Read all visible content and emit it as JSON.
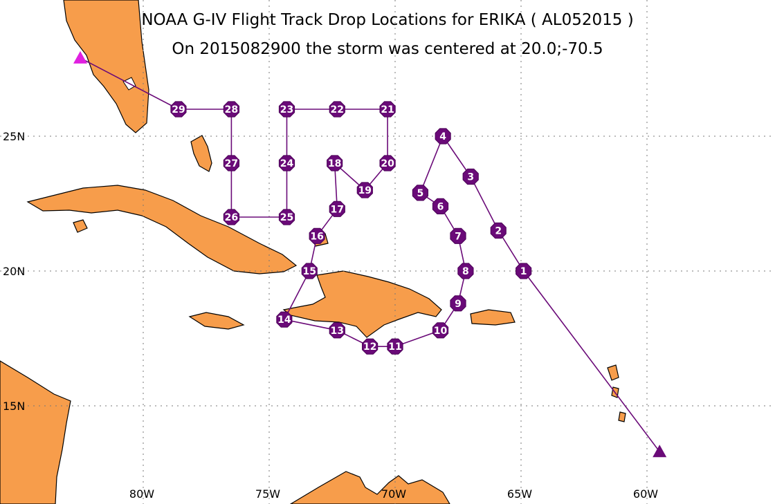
{
  "title": "NOAA G-IV Flight Track Drop Locations for ERIKA ( AL052015 )",
  "subtitle": "On 2015082900 the storm was centered at 20.0;-70.5",
  "colors": {
    "land": "#f79d4b",
    "track": "#6a0a78",
    "start_marker": "#e020e0",
    "end_marker": "#6a0a78"
  },
  "axes": {
    "lat_labels": [
      "25N",
      "20N",
      "15N"
    ],
    "lon_labels": [
      "80W",
      "75W",
      "70W",
      "65W",
      "60W"
    ]
  },
  "grid": true,
  "markers": {
    "start": {
      "shape": "triangle",
      "lat": 27.9,
      "lon": -82.5
    },
    "end": {
      "shape": "triangle",
      "lat": 13.3,
      "lon": -59.5
    }
  },
  "drops": [
    {
      "id": "1",
      "lat": 20.0,
      "lon": -64.9
    },
    {
      "id": "2",
      "lat": 21.5,
      "lon": -65.9
    },
    {
      "id": "3",
      "lat": 23.5,
      "lon": -67.0
    },
    {
      "id": "4",
      "lat": 25.0,
      "lon": -68.1
    },
    {
      "id": "5",
      "lat": 22.9,
      "lon": -69.0
    },
    {
      "id": "6",
      "lat": 22.4,
      "lon": -68.2
    },
    {
      "id": "7",
      "lat": 21.3,
      "lon": -67.5
    },
    {
      "id": "8",
      "lat": 20.0,
      "lon": -67.2
    },
    {
      "id": "9",
      "lat": 18.8,
      "lon": -67.5
    },
    {
      "id": "10",
      "lat": 17.8,
      "lon": -68.2
    },
    {
      "id": "11",
      "lat": 17.2,
      "lon": -70.0
    },
    {
      "id": "12",
      "lat": 17.2,
      "lon": -71.0
    },
    {
      "id": "13",
      "lat": 17.8,
      "lon": -72.3
    },
    {
      "id": "14",
      "lat": 18.2,
      "lon": -74.4
    },
    {
      "id": "15",
      "lat": 20.0,
      "lon": -73.4
    },
    {
      "id": "16",
      "lat": 21.3,
      "lon": -73.1
    },
    {
      "id": "17",
      "lat": 22.3,
      "lon": -72.3
    },
    {
      "id": "18",
      "lat": 24.0,
      "lon": -72.4
    },
    {
      "id": "19",
      "lat": 23.0,
      "lon": -71.2
    },
    {
      "id": "20",
      "lat": 24.0,
      "lon": -70.3
    },
    {
      "id": "21",
      "lat": 26.0,
      "lon": -70.3
    },
    {
      "id": "22",
      "lat": 26.0,
      "lon": -72.3
    },
    {
      "id": "23",
      "lat": 26.0,
      "lon": -74.3
    },
    {
      "id": "24",
      "lat": 24.0,
      "lon": -74.3
    },
    {
      "id": "25",
      "lat": 22.0,
      "lon": -74.3
    },
    {
      "id": "26",
      "lat": 22.0,
      "lon": -76.5
    },
    {
      "id": "27",
      "lat": 24.0,
      "lon": -76.5
    },
    {
      "id": "28",
      "lat": 26.0,
      "lon": -76.5
    },
    {
      "id": "29",
      "lat": 26.0,
      "lon": -78.6
    }
  ]
}
